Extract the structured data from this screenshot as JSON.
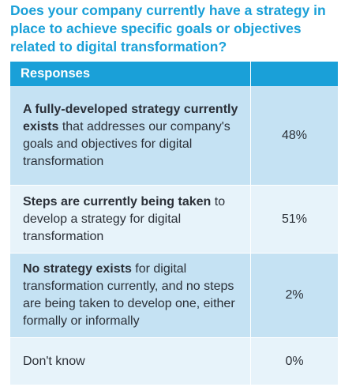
{
  "question": "Does your company currently have a strategy in place to achieve specific goals or objectives related to digital transformation?",
  "table": {
    "header": "Responses",
    "rows": [
      {
        "bold": "A fully-developed strategy currently exists",
        "rest": " that addresses our company's goals and objectives for digital transformation",
        "value": "48%"
      },
      {
        "bold": "Steps are currently being taken",
        "rest": " to develop a strategy for digital transformation",
        "value": "51%"
      },
      {
        "bold": "No strategy exists",
        "rest": " for digital transformation currently, and no steps are being taken to develop one, either formally or informally",
        "value": "2%"
      },
      {
        "bold": "",
        "rest": "Don't know",
        "value": "0%"
      }
    ]
  },
  "colors": {
    "accent": "#1aa0d8",
    "row_dark": "#c5e2f3",
    "row_light": "#e7f3fa",
    "text": "#2b3038"
  }
}
